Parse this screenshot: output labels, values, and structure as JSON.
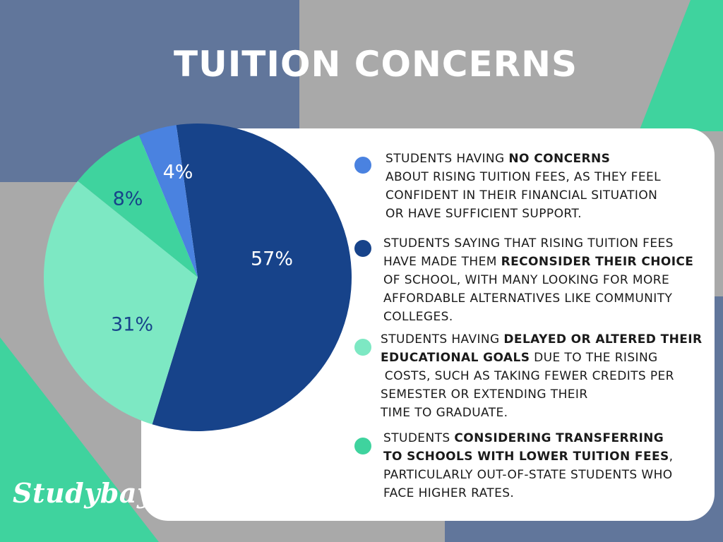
{
  "title": "TUITION CONCERNS",
  "brand": "Studybay",
  "colors": {
    "slate_blue": "#61769b",
    "gray": "#a9a9a9",
    "green": "#3fd39e",
    "navy": "#17438a",
    "royal": "#4a82e0",
    "mint": "#7de8c3",
    "white": "#ffffff"
  },
  "chart_data": {
    "type": "pie",
    "slices": [
      {
        "label": "57%",
        "value": 57,
        "color": "#17438a"
      },
      {
        "label": "31%",
        "value": 31,
        "color": "#7de8c3"
      },
      {
        "label": "8%",
        "value": 8,
        "color": "#3fd39e"
      },
      {
        "label": "4%",
        "value": 4,
        "color": "#4a82e0"
      }
    ],
    "legend": [
      {
        "color": "#4a82e0",
        "lines": [
          [
            {
              "t": "STUDENTS HAVING ",
              "b": false
            },
            {
              "t": "NO CONCERNS",
              "b": true
            }
          ],
          [
            {
              "t": "ABOUT RISING TUITION FEES, AS THEY FEEL",
              "b": false
            }
          ],
          [
            {
              "t": "CONFIDENT IN THEIR FINANCIAL SITUATION",
              "b": false
            }
          ],
          [
            {
              "t": "OR HAVE SUFFICIENT SUPPORT.",
              "b": false
            }
          ]
        ]
      },
      {
        "color": "#17438a",
        "lines": [
          [
            {
              "t": "STUDENTS SAYING THAT RISING TUITION FEES",
              "b": false
            }
          ],
          [
            {
              "t": "HAVE MADE THEM ",
              "b": false
            },
            {
              "t": "RECONSIDER THEIR CHOICE",
              "b": true
            }
          ],
          [
            {
              "t": "OF SCHOOL, WITH MANY LOOKING FOR MORE",
              "b": false
            }
          ],
          [
            {
              "t": "AFFORDABLE ALTERNATIVES LIKE COMMUNITY",
              "b": false
            }
          ],
          [
            {
              "t": "COLLEGES.",
              "b": false
            }
          ]
        ]
      },
      {
        "color": "#7de8c3",
        "lines": [
          [
            {
              "t": "STUDENTS HAVING ",
              "b": false
            },
            {
              "t": "DELAYED OR ALTERED THEIR",
              "b": true
            }
          ],
          [
            {
              "t": "EDUCATIONAL GOALS",
              "b": true
            },
            {
              "t": " DUE TO THE RISING",
              "b": false
            }
          ],
          [
            {
              "t": " COSTS, SUCH AS TAKING FEWER CREDITS PER",
              "b": false
            }
          ],
          [
            {
              "t": "SEMESTER OR EXTENDING THEIR",
              "b": false
            }
          ],
          [
            {
              "t": "TIME TO GRADUATE.",
              "b": false
            }
          ]
        ]
      },
      {
        "color": "#3fd39e",
        "lines": [
          [
            {
              "t": "STUDENTS ",
              "b": false
            },
            {
              "t": "CONSIDERING TRANSFERRING",
              "b": true
            }
          ],
          [
            {
              "t": "TO SCHOOLS WITH LOWER TUITION FEES",
              "b": true
            },
            {
              "t": ",",
              "b": false
            }
          ],
          [
            {
              "t": "PARTICULARLY OUT-OF-STATE STUDENTS WHO",
              "b": false
            }
          ],
          [
            {
              "t": "FACE HIGHER RATES.",
              "b": false
            }
          ]
        ]
      }
    ]
  }
}
